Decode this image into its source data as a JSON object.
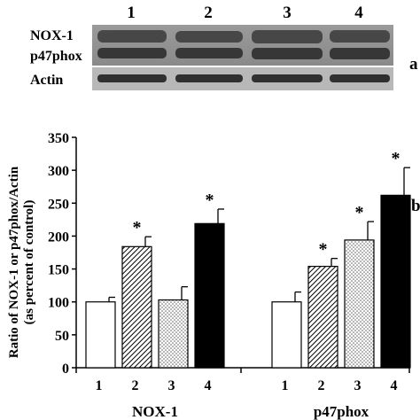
{
  "blot": {
    "lanes": [
      "1",
      "2",
      "3",
      "4"
    ],
    "rows": [
      "NOX-1",
      "p47phox",
      "Actin"
    ],
    "panel_label": "a"
  },
  "panel_label_b": "b",
  "chart_data": {
    "type": "bar",
    "ylabel_line1": "Ratio of NOX-1 or p47phox/Actin",
    "ylabel_line2": "(as percent of control)",
    "ylim": [
      0,
      350
    ],
    "yticks": [
      "0",
      "50",
      "100",
      "150",
      "200",
      "250",
      "300",
      "350"
    ],
    "bar_labels": [
      "1",
      "2",
      "3",
      "4"
    ],
    "groups": [
      {
        "name": "NOX-1",
        "values": [
          100,
          184,
          103,
          219
        ],
        "errors": [
          7,
          15,
          20,
          22
        ],
        "significant": [
          false,
          true,
          false,
          true
        ]
      },
      {
        "name": "p47phox",
        "values": [
          100,
          154,
          194,
          262
        ],
        "errors": [
          15,
          12,
          28,
          42
        ],
        "significant": [
          false,
          true,
          true,
          true
        ]
      }
    ],
    "significance_marker": "*",
    "bar_styles": [
      "white",
      "hatched",
      "dotted",
      "black"
    ],
    "grid": false,
    "legend": "none"
  }
}
